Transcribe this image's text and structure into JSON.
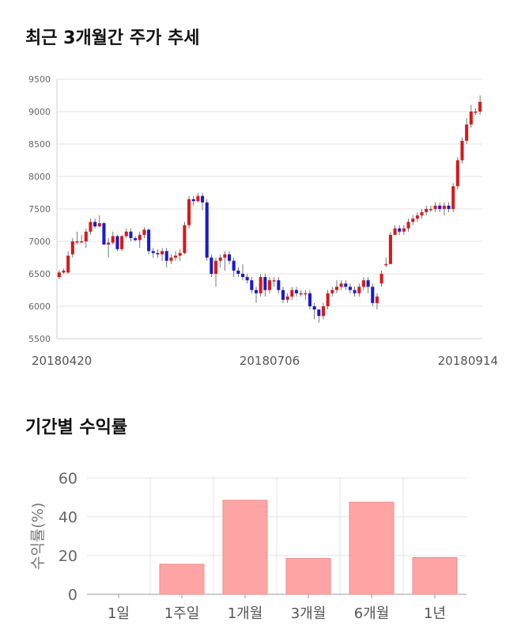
{
  "sections": {
    "price_title": "최근 3개월간 주가 추세",
    "returns_title": "기간별 수익률"
  },
  "chart_data": [
    {
      "type": "candlestick",
      "title": "최근 3개월간 주가 추세",
      "ylim": [
        5500,
        9500
      ],
      "yticks": [
        5500,
        6000,
        6500,
        7000,
        7500,
        8000,
        8500,
        9000,
        9500
      ],
      "xtick_labels": [
        "20180420",
        "20180706",
        "20180914"
      ],
      "grid": true,
      "colors": {
        "up": "#d7191c",
        "down": "#1a1acc"
      },
      "candles": [
        [
          6450,
          6520,
          6420,
          6560
        ],
        [
          6520,
          6550,
          6500,
          6580
        ],
        [
          6520,
          6780,
          6500,
          6850
        ],
        [
          6800,
          7000,
          6750,
          7050
        ],
        [
          7000,
          7000,
          6950,
          7150
        ],
        [
          7000,
          7000,
          6980,
          7100
        ],
        [
          7000,
          7150,
          6900,
          7200
        ],
        [
          7150,
          7300,
          7100,
          7350
        ],
        [
          7300,
          7230,
          7200,
          7350
        ],
        [
          7230,
          7280,
          7220,
          7400
        ],
        [
          7280,
          6950,
          6950,
          7300
        ],
        [
          6950,
          6980,
          6750,
          7050
        ],
        [
          6980,
          7080,
          6950,
          7150
        ],
        [
          7080,
          6880,
          6850,
          7100
        ],
        [
          6880,
          7080,
          6850,
          7100
        ],
        [
          7080,
          7150,
          7050,
          7200
        ],
        [
          7150,
          7050,
          7000,
          7200
        ],
        [
          7050,
          7020,
          7000,
          7080
        ],
        [
          7020,
          7100,
          6900,
          7150
        ],
        [
          7100,
          7180,
          7050,
          7220
        ],
        [
          7180,
          6850,
          6800,
          7200
        ],
        [
          6850,
          6820,
          6750,
          6900
        ],
        [
          6820,
          6800,
          6750,
          6880
        ],
        [
          6800,
          6850,
          6700,
          6900
        ],
        [
          6850,
          6700,
          6600,
          6900
        ],
        [
          6700,
          6750,
          6650,
          6800
        ],
        [
          6750,
          6780,
          6700,
          6850
        ],
        [
          6780,
          6820,
          6700,
          6880
        ],
        [
          6820,
          7250,
          6800,
          7300
        ],
        [
          7250,
          7650,
          7200,
          7700
        ],
        [
          7650,
          7620,
          7550,
          7700
        ],
        [
          7620,
          7700,
          7600,
          7750
        ],
        [
          7700,
          7600,
          7480,
          7750
        ],
        [
          7600,
          6750,
          6700,
          7650
        ],
        [
          6750,
          6500,
          6450,
          6800
        ],
        [
          6500,
          6700,
          6300,
          6750
        ],
        [
          6700,
          6750,
          6600,
          6800
        ],
        [
          6750,
          6800,
          6550,
          6850
        ],
        [
          6800,
          6700,
          6650,
          6850
        ],
        [
          6700,
          6550,
          6450,
          6750
        ],
        [
          6550,
          6500,
          6450,
          6600
        ],
        [
          6500,
          6450,
          6400,
          6650
        ],
        [
          6450,
          6400,
          6350,
          6500
        ],
        [
          6400,
          6250,
          6200,
          6450
        ],
        [
          6250,
          6200,
          6050,
          6300
        ],
        [
          6200,
          6450,
          6150,
          6500
        ],
        [
          6450,
          6250,
          6150,
          6500
        ],
        [
          6250,
          6400,
          6200,
          6450
        ],
        [
          6400,
          6400,
          6300,
          6450
        ],
        [
          6400,
          6250,
          6200,
          6450
        ],
        [
          6250,
          6100,
          6050,
          6300
        ],
        [
          6100,
          6150,
          6050,
          6200
        ],
        [
          6150,
          6250,
          6100,
          6300
        ],
        [
          6250,
          6200,
          6150,
          6300
        ],
        [
          6200,
          6200,
          6150,
          6250
        ],
        [
          6200,
          6200,
          6100,
          6250
        ],
        [
          6200,
          6000,
          5950,
          6250
        ],
        [
          6000,
          5950,
          5800,
          6050
        ],
        [
          5950,
          5850,
          5750,
          5950
        ],
        [
          5850,
          6000,
          5800,
          6050
        ],
        [
          6000,
          6200,
          5950,
          6250
        ],
        [
          6200,
          6250,
          6150,
          6300
        ],
        [
          6250,
          6300,
          6200,
          6400
        ],
        [
          6300,
          6350,
          6250,
          6400
        ],
        [
          6350,
          6300,
          6250,
          6400
        ],
        [
          6300,
          6250,
          6200,
          6350
        ],
        [
          6250,
          6200,
          6150,
          6300
        ],
        [
          6200,
          6300,
          6150,
          6350
        ],
        [
          6300,
          6400,
          6250,
          6450
        ],
        [
          6400,
          6300,
          6200,
          6450
        ],
        [
          6300,
          6050,
          6000,
          6350
        ],
        [
          6050,
          6150,
          5950,
          6200
        ],
        [
          6350,
          6500,
          6300,
          6550
        ],
        [
          6650,
          6650,
          6600,
          6750
        ],
        [
          6650,
          7100,
          6650,
          7150
        ],
        [
          7100,
          7200,
          7100,
          7250
        ],
        [
          7200,
          7150,
          7100,
          7250
        ],
        [
          7150,
          7200,
          7100,
          7250
        ],
        [
          7200,
          7300,
          7150,
          7350
        ],
        [
          7300,
          7350,
          7250,
          7400
        ],
        [
          7350,
          7400,
          7300,
          7450
        ],
        [
          7400,
          7450,
          7350,
          7500
        ],
        [
          7450,
          7500,
          7400,
          7550
        ],
        [
          7500,
          7500,
          7450,
          7550
        ],
        [
          7500,
          7550,
          7450,
          7600
        ],
        [
          7550,
          7500,
          7450,
          7600
        ],
        [
          7500,
          7550,
          7400,
          7600
        ],
        [
          7550,
          7500,
          7450,
          7600
        ],
        [
          7500,
          7850,
          7450,
          7900
        ],
        [
          7850,
          8250,
          7800,
          8300
        ],
        [
          8250,
          8550,
          8200,
          8600
        ],
        [
          8550,
          8800,
          8500,
          8900
        ],
        [
          8800,
          9000,
          8750,
          9100
        ],
        [
          9000,
          9000,
          8950,
          9050
        ],
        [
          9000,
          9150,
          8950,
          9250
        ]
      ]
    },
    {
      "type": "bar",
      "title": "기간별 수익률",
      "categories": [
        "1일",
        "1주일",
        "1개월",
        "3개월",
        "6개월",
        "1년"
      ],
      "values": [
        0,
        15.5,
        48.5,
        18.5,
        47.5,
        19.0
      ],
      "ylabel": "수익률(%)",
      "ylim": [
        0,
        60
      ],
      "yticks": [
        0,
        20,
        40,
        60
      ],
      "grid": true,
      "colors": {
        "bar": "#ffa4a4",
        "bar_edge": "#e88e8e"
      }
    }
  ]
}
